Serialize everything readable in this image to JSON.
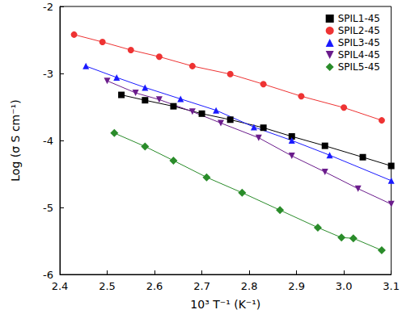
{
  "chart_data": {
    "type": "line",
    "x_label": "10³ T⁻¹ (K⁻¹)",
    "y_label": "Log (σ S cm⁻¹)",
    "xlim": [
      2.4,
      3.1
    ],
    "xticks": [
      2.4,
      2.5,
      2.6,
      2.7,
      2.8,
      2.9,
      {
        "value": 3,
        "label": "3.0"
      },
      3.1
    ],
    "ylim": [
      -6,
      -2
    ],
    "yticks": [
      -6,
      -5,
      -4,
      -3,
      -2
    ],
    "grid": false,
    "legend": "top-right",
    "series": [
      {
        "name": "SPIL1-45",
        "color": "#000000",
        "marker": "square",
        "x": [
          2.53,
          2.58,
          2.64,
          2.7,
          2.76,
          2.83,
          2.89,
          2.96,
          3.04,
          3.1
        ],
        "values": [
          -3.32,
          -3.4,
          -3.49,
          -3.6,
          -3.69,
          -3.81,
          -3.94,
          -4.08,
          -4.25,
          -4.38
        ]
      },
      {
        "name": "SPIL2-45",
        "color": "#ee3333",
        "marker": "circle",
        "x": [
          2.43,
          2.49,
          2.55,
          2.61,
          2.68,
          2.76,
          2.83,
          2.91,
          3.0,
          3.08
        ],
        "values": [
          -2.42,
          -2.53,
          -2.65,
          -2.75,
          -2.89,
          -3.01,
          -3.16,
          -3.34,
          -3.51,
          -3.7
        ]
      },
      {
        "name": "SPIL3-45",
        "color": "#1a1aff",
        "marker": "triangle",
        "x": [
          2.455,
          2.52,
          2.58,
          2.655,
          2.73,
          2.81,
          2.89,
          2.97,
          3.1
        ],
        "values": [
          -2.89,
          -3.06,
          -3.21,
          -3.38,
          -3.55,
          -3.8,
          -4.0,
          -4.22,
          -4.6
        ]
      },
      {
        "name": "SPIL4-45",
        "color": "#6b1c8c",
        "marker": "triangle_down",
        "x": [
          2.5,
          2.56,
          2.61,
          2.68,
          2.74,
          2.82,
          2.89,
          2.96,
          3.03,
          3.1
        ],
        "values": [
          -3.11,
          -3.29,
          -3.39,
          -3.57,
          -3.74,
          -3.96,
          -4.23,
          -4.47,
          -4.72,
          -4.95
        ]
      },
      {
        "name": "SPIL5-45",
        "color": "#2a8c2a",
        "marker": "diamond",
        "x": [
          2.515,
          2.58,
          2.64,
          2.71,
          2.785,
          2.865,
          2.945,
          2.995,
          3.02,
          3.08
        ],
        "values": [
          -3.89,
          -4.09,
          -4.3,
          -4.55,
          -4.78,
          -5.04,
          -5.3,
          -5.45,
          -5.46,
          -5.64
        ]
      }
    ]
  }
}
